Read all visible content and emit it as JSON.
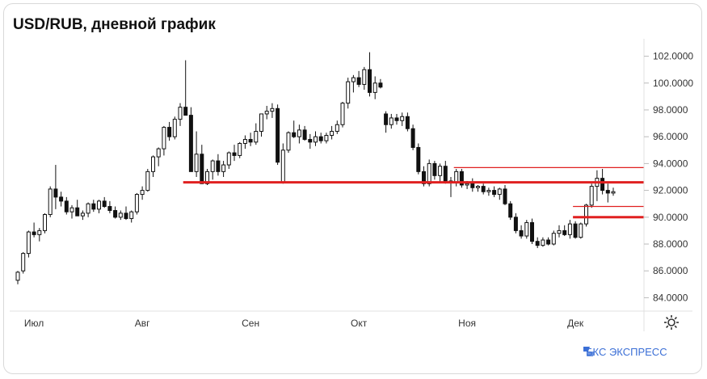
{
  "title": "USD/RUB, дневной график",
  "brand": {
    "text": "БКС ЭКСПРЕСС",
    "color": "#3b6fd6"
  },
  "icons": {
    "settings": "gear-icon",
    "brand": "bks-logo-icon"
  },
  "colors": {
    "candle": "#111111",
    "level": "#e02020"
  },
  "chart_data": {
    "type": "candlestick",
    "title": "USD/RUB, дневной график",
    "ylim": [
      83.0,
      103.3
    ],
    "y_ticks": [
      "102.0000",
      "100.0000",
      "98.0000",
      "96.0000",
      "94.0000",
      "92.0000",
      "90.0000",
      "88.0000",
      "86.0000",
      "84.0000"
    ],
    "y_tick_values": [
      102,
      100,
      98,
      96,
      94,
      92,
      90,
      88,
      86,
      84
    ],
    "x_ticks": [
      "Июл",
      "Авг",
      "Сен",
      "Окт",
      "Ноя",
      "Дек"
    ],
    "x_tick_index": [
      3,
      23,
      43,
      63,
      83,
      103
    ],
    "grid": false,
    "candles": [
      [
        85.3,
        86.0,
        85.0,
        85.9
      ],
      [
        86.0,
        87.4,
        85.8,
        87.3
      ],
      [
        87.3,
        89.0,
        87.0,
        88.9
      ],
      [
        88.9,
        89.6,
        88.5,
        88.7
      ],
      [
        88.7,
        89.2,
        88.2,
        89.0
      ],
      [
        89.0,
        90.3,
        88.8,
        90.2
      ],
      [
        90.2,
        92.3,
        90.0,
        92.1
      ],
      [
        92.1,
        93.9,
        90.6,
        91.5
      ],
      [
        91.5,
        91.9,
        90.8,
        91.2
      ],
      [
        91.2,
        91.5,
        90.2,
        90.4
      ],
      [
        90.4,
        90.9,
        89.9,
        90.7
      ],
      [
        90.7,
        91.3,
        90.2,
        90.1
      ],
      [
        90.1,
        90.5,
        89.8,
        90.3
      ],
      [
        90.3,
        91.1,
        90.0,
        91.0
      ],
      [
        91.0,
        91.3,
        90.4,
        90.6
      ],
      [
        90.6,
        91.3,
        90.3,
        91.2
      ],
      [
        91.2,
        91.5,
        90.7,
        90.8
      ],
      [
        90.8,
        91.2,
        90.3,
        90.5
      ],
      [
        90.5,
        90.8,
        89.9,
        90.0
      ],
      [
        90.0,
        90.5,
        89.8,
        90.3
      ],
      [
        90.3,
        90.8,
        89.8,
        89.9
      ],
      [
        89.9,
        90.5,
        89.6,
        90.4
      ],
      [
        90.4,
        91.8,
        90.2,
        91.7
      ],
      [
        91.7,
        92.3,
        91.3,
        92.0
      ],
      [
        92.0,
        93.6,
        91.9,
        93.4
      ],
      [
        93.4,
        94.6,
        93.0,
        94.5
      ],
      [
        94.5,
        95.2,
        93.8,
        95.1
      ],
      [
        95.1,
        96.8,
        94.6,
        96.7
      ],
      [
        96.7,
        97.1,
        95.7,
        96.0
      ],
      [
        96.0,
        97.5,
        95.8,
        97.3
      ],
      [
        97.3,
        98.5,
        96.8,
        98.2
      ],
      [
        98.2,
        101.7,
        97.8,
        97.6
      ],
      [
        97.6,
        98.2,
        93.4,
        93.4
      ],
      [
        93.4,
        96.4,
        93.0,
        94.7
      ],
      [
        94.7,
        95.4,
        92.5,
        92.5
      ],
      [
        92.5,
        93.6,
        92.4,
        93.4
      ],
      [
        93.4,
        94.3,
        92.8,
        94.2
      ],
      [
        94.2,
        94.7,
        93.1,
        93.4
      ],
      [
        93.4,
        94.2,
        93.0,
        93.9
      ],
      [
        93.9,
        94.9,
        93.6,
        94.8
      ],
      [
        94.8,
        95.4,
        94.2,
        94.6
      ],
      [
        94.6,
        95.6,
        94.4,
        95.5
      ],
      [
        95.5,
        96.1,
        95.1,
        95.8
      ],
      [
        95.8,
        96.3,
        95.3,
        95.6
      ],
      [
        95.6,
        97.0,
        95.4,
        96.4
      ],
      [
        96.4,
        97.7,
        96.0,
        97.7
      ],
      [
        97.7,
        98.3,
        97.3,
        97.9
      ],
      [
        97.9,
        98.5,
        97.4,
        98.1
      ],
      [
        98.1,
        98.4,
        93.9,
        94.1
      ],
      [
        92.6,
        95.5,
        92.5,
        95.0
      ],
      [
        95.0,
        96.4,
        94.8,
        96.3
      ],
      [
        96.3,
        97.2,
        95.9,
        96.0
      ],
      [
        96.0,
        96.9,
        95.5,
        96.5
      ],
      [
        96.5,
        96.8,
        95.7,
        95.8
      ],
      [
        95.8,
        96.2,
        95.1,
        95.6
      ],
      [
        95.6,
        96.4,
        95.3,
        96.0
      ],
      [
        96.0,
        96.3,
        95.5,
        95.7
      ],
      [
        95.7,
        96.3,
        95.5,
        96.1
      ],
      [
        96.1,
        96.8,
        95.8,
        96.4
      ],
      [
        96.4,
        97.2,
        96.2,
        96.9
      ],
      [
        96.9,
        98.6,
        96.7,
        98.5
      ],
      [
        98.5,
        100.4,
        98.1,
        100.1
      ],
      [
        100.1,
        100.6,
        99.3,
        100.4
      ],
      [
        100.4,
        100.9,
        99.7,
        99.9
      ],
      [
        99.9,
        101.2,
        99.5,
        101.0
      ],
      [
        101.0,
        102.3,
        99.0,
        99.3
      ],
      [
        99.3,
        100.5,
        98.8,
        100.0
      ],
      [
        100.0,
        100.3,
        99.6,
        99.7
      ],
      [
        97.7,
        97.9,
        96.3,
        96.9
      ],
      [
        96.9,
        97.7,
        96.6,
        97.4
      ],
      [
        97.4,
        97.7,
        96.9,
        97.2
      ],
      [
        97.2,
        97.8,
        96.8,
        97.5
      ],
      [
        97.5,
        97.8,
        96.4,
        96.6
      ],
      [
        96.6,
        96.9,
        95.0,
        95.2
      ],
      [
        95.2,
        95.5,
        93.2,
        93.4
      ],
      [
        93.4,
        93.8,
        92.3,
        92.5
      ],
      [
        92.5,
        94.3,
        92.3,
        94.0
      ],
      [
        94.0,
        94.2,
        92.8,
        93.1
      ],
      [
        93.1,
        94.0,
        92.6,
        93.8
      ],
      [
        93.8,
        94.2,
        92.5,
        92.7
      ],
      [
        92.7,
        93.0,
        91.5,
        92.6
      ],
      [
        92.6,
        93.6,
        92.3,
        93.4
      ],
      [
        93.4,
        93.6,
        92.2,
        92.4
      ],
      [
        92.4,
        92.7,
        92.1,
        92.5
      ],
      [
        92.5,
        92.9,
        91.9,
        92.2
      ],
      [
        92.2,
        92.4,
        91.9,
        92.3
      ],
      [
        92.3,
        92.5,
        91.7,
        91.9
      ],
      [
        91.9,
        92.2,
        91.6,
        92.0
      ],
      [
        92.0,
        92.3,
        91.5,
        91.7
      ],
      [
        91.7,
        92.2,
        91.3,
        92.1
      ],
      [
        92.1,
        92.4,
        90.9,
        91.0
      ],
      [
        91.0,
        91.2,
        89.8,
        90.0
      ],
      [
        90.0,
        90.3,
        88.8,
        89.0
      ],
      [
        89.0,
        89.4,
        88.4,
        88.6
      ],
      [
        88.6,
        89.8,
        88.4,
        89.6
      ],
      [
        89.6,
        89.9,
        88.0,
        88.2
      ],
      [
        88.2,
        88.5,
        87.7,
        87.9
      ],
      [
        87.9,
        88.5,
        87.8,
        88.3
      ],
      [
        88.3,
        88.5,
        87.9,
        88.0
      ],
      [
        88.0,
        89.0,
        87.9,
        88.8
      ],
      [
        88.8,
        89.4,
        88.5,
        89.0
      ],
      [
        89.0,
        89.4,
        88.6,
        88.7
      ],
      [
        88.7,
        89.8,
        88.4,
        89.5
      ],
      [
        89.5,
        89.7,
        88.4,
        88.5
      ],
      [
        88.5,
        89.6,
        88.4,
        89.5
      ],
      [
        89.5,
        91.0,
        89.3,
        90.9
      ],
      [
        90.9,
        92.5,
        90.7,
        92.3
      ],
      [
        92.3,
        93.5,
        91.2,
        92.9
      ],
      [
        92.9,
        93.6,
        91.7,
        92.0
      ],
      [
        92.0,
        92.5,
        91.1,
        91.8
      ],
      [
        91.8,
        92.2,
        91.6,
        91.9
      ]
    ],
    "levels": [
      {
        "price": 92.6,
        "start_index": 31,
        "style": "thick"
      },
      {
        "price": 93.7,
        "start_index": 81,
        "style": "thin"
      },
      {
        "price": 90.8,
        "start_index": 103,
        "style": "thin"
      },
      {
        "price": 90.0,
        "start_index": 103,
        "style": "thick"
      }
    ]
  }
}
